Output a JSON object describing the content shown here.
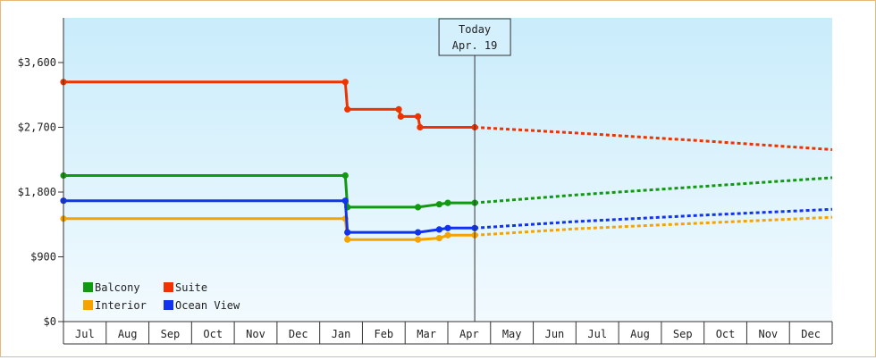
{
  "chart_data": {
    "type": "line",
    "title": "",
    "xlabel": "",
    "ylabel": "",
    "x_ticks": [
      "Jul",
      "Aug",
      "Sep",
      "Oct",
      "Nov",
      "Dec",
      "Jan",
      "Feb",
      "Mar",
      "Apr",
      "May",
      "Jun",
      "Jul",
      "Aug",
      "Sep",
      "Oct",
      "Nov",
      "Dec"
    ],
    "y_ticks": [
      "$0",
      "$900",
      "$1,800",
      "$2,700",
      "$3,600"
    ],
    "ylim": [
      0,
      3600
    ],
    "grid": false,
    "legend_position": "bottom-left",
    "today_marker": {
      "line1": "Today",
      "line2": "Apr. 19",
      "x": 9.63
    },
    "series": [
      {
        "name": "Balcony",
        "color": "#119911",
        "points": [
          [
            0,
            2030
          ],
          [
            6.6,
            2030
          ],
          [
            6.65,
            1590
          ],
          [
            8.3,
            1590
          ],
          [
            8.8,
            1630
          ],
          [
            9.0,
            1650
          ],
          [
            9.63,
            1650
          ]
        ],
        "forecast": [
          [
            9.63,
            1650
          ],
          [
            12,
            1760
          ],
          [
            15,
            1880
          ],
          [
            18,
            2000
          ]
        ]
      },
      {
        "name": "Suite",
        "color": "#ee3300",
        "points": [
          [
            0,
            3330
          ],
          [
            6.6,
            3330
          ],
          [
            6.65,
            2950
          ],
          [
            7.85,
            2950
          ],
          [
            7.9,
            2850
          ],
          [
            8.3,
            2850
          ],
          [
            8.35,
            2700
          ],
          [
            9.63,
            2700
          ]
        ],
        "forecast": [
          [
            9.63,
            2700
          ],
          [
            12,
            2620
          ],
          [
            15,
            2510
          ],
          [
            18,
            2390
          ]
        ]
      },
      {
        "name": "Interior",
        "color": "#f5a300",
        "points": [
          [
            0,
            1430
          ],
          [
            6.6,
            1430
          ],
          [
            6.65,
            1140
          ],
          [
            8.3,
            1140
          ],
          [
            8.8,
            1160
          ],
          [
            9.0,
            1200
          ],
          [
            9.63,
            1200
          ]
        ],
        "forecast": [
          [
            9.63,
            1200
          ],
          [
            12,
            1290
          ],
          [
            15,
            1370
          ],
          [
            18,
            1450
          ]
        ]
      },
      {
        "name": "Ocean View",
        "color": "#1133ee",
        "points": [
          [
            0,
            1680
          ],
          [
            6.6,
            1680
          ],
          [
            6.65,
            1240
          ],
          [
            8.3,
            1240
          ],
          [
            8.8,
            1280
          ],
          [
            9.0,
            1300
          ],
          [
            9.63,
            1300
          ]
        ],
        "forecast": [
          [
            9.63,
            1300
          ],
          [
            12,
            1390
          ],
          [
            15,
            1480
          ],
          [
            18,
            1560
          ]
        ]
      }
    ],
    "legend": [
      {
        "label": "Balcony",
        "color": "#119911"
      },
      {
        "label": "Suite",
        "color": "#ee3300"
      },
      {
        "label": "Interior",
        "color": "#f5a300"
      },
      {
        "label": "Ocean View",
        "color": "#1133ee"
      }
    ]
  }
}
